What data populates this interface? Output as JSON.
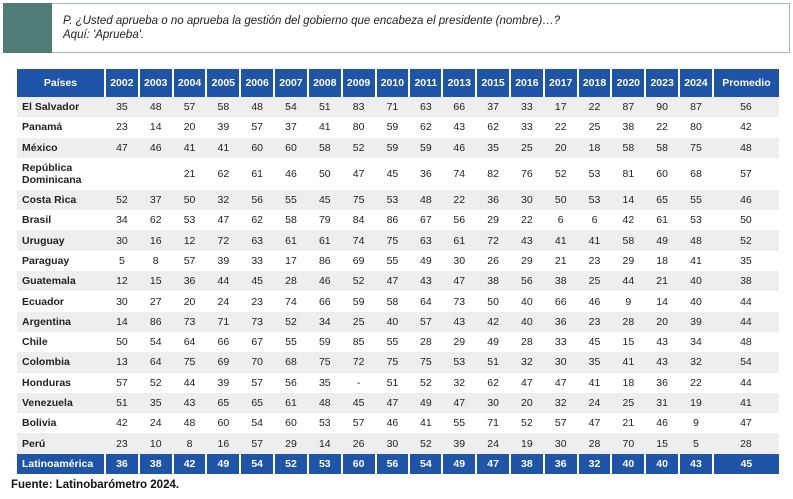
{
  "question": {
    "line1": "P. ¿Usted aprueba o no aprueba la gestión del gobierno que encabeza el presidente (nombre)…?",
    "line2": "Aquí: 'Aprueba'."
  },
  "table": {
    "headers": [
      "Países",
      "2002",
      "2003",
      "2004",
      "2005",
      "2006",
      "2007",
      "2008",
      "2009",
      "2010",
      "2011",
      "2013",
      "2015",
      "2016",
      "2017",
      "2018",
      "2020",
      "2023",
      "2024",
      "Promedio"
    ],
    "rows": [
      {
        "country": "El Salvador",
        "values": [
          "35",
          "48",
          "57",
          "58",
          "48",
          "54",
          "51",
          "83",
          "71",
          "63",
          "66",
          "37",
          "33",
          "17",
          "22",
          "87",
          "90",
          "87",
          "56"
        ]
      },
      {
        "country": "Panamá",
        "values": [
          "23",
          "14",
          "20",
          "39",
          "57",
          "37",
          "41",
          "80",
          "59",
          "62",
          "43",
          "62",
          "33",
          "22",
          "25",
          "38",
          "22",
          "80",
          "42"
        ]
      },
      {
        "country": "México",
        "values": [
          "47",
          "46",
          "41",
          "41",
          "60",
          "60",
          "58",
          "52",
          "59",
          "59",
          "46",
          "35",
          "25",
          "20",
          "18",
          "58",
          "58",
          "75",
          "48"
        ]
      },
      {
        "country": "República Dominicana",
        "values": [
          "",
          "",
          "21",
          "62",
          "61",
          "46",
          "50",
          "47",
          "45",
          "36",
          "74",
          "82",
          "76",
          "52",
          "53",
          "81",
          "60",
          "68",
          "57"
        ]
      },
      {
        "country": "Costa Rica",
        "values": [
          "52",
          "37",
          "50",
          "32",
          "56",
          "55",
          "45",
          "75",
          "53",
          "48",
          "22",
          "36",
          "30",
          "50",
          "53",
          "14",
          "65",
          "55",
          "46"
        ]
      },
      {
        "country": "Brasil",
        "values": [
          "34",
          "62",
          "53",
          "47",
          "62",
          "58",
          "79",
          "84",
          "86",
          "67",
          "56",
          "29",
          "22",
          "6",
          "6",
          "42",
          "61",
          "53",
          "50"
        ]
      },
      {
        "country": "Uruguay",
        "values": [
          "30",
          "16",
          "12",
          "72",
          "63",
          "61",
          "61",
          "74",
          "75",
          "63",
          "61",
          "72",
          "43",
          "41",
          "41",
          "58",
          "49",
          "48",
          "52"
        ]
      },
      {
        "country": "Paraguay",
        "values": [
          "5",
          "8",
          "57",
          "39",
          "33",
          "17",
          "86",
          "69",
          "55",
          "49",
          "30",
          "26",
          "29",
          "21",
          "23",
          "29",
          "18",
          "41",
          "35"
        ]
      },
      {
        "country": "Guatemala",
        "values": [
          "12",
          "15",
          "36",
          "44",
          "45",
          "28",
          "46",
          "52",
          "47",
          "43",
          "47",
          "38",
          "56",
          "38",
          "25",
          "44",
          "21",
          "40",
          "38"
        ]
      },
      {
        "country": "Ecuador",
        "values": [
          "30",
          "27",
          "20",
          "24",
          "23",
          "74",
          "66",
          "59",
          "58",
          "64",
          "73",
          "50",
          "40",
          "66",
          "46",
          "9",
          "14",
          "40",
          "44"
        ]
      },
      {
        "country": "Argentina",
        "values": [
          "14",
          "86",
          "73",
          "71",
          "73",
          "52",
          "34",
          "25",
          "40",
          "57",
          "43",
          "42",
          "40",
          "36",
          "23",
          "28",
          "20",
          "39",
          "44"
        ]
      },
      {
        "country": "Chile",
        "values": [
          "50",
          "54",
          "64",
          "66",
          "67",
          "55",
          "59",
          "85",
          "55",
          "28",
          "29",
          "49",
          "28",
          "33",
          "45",
          "15",
          "43",
          "34",
          "48"
        ]
      },
      {
        "country": "Colombia",
        "values": [
          "13",
          "64",
          "75",
          "69",
          "70",
          "68",
          "75",
          "72",
          "75",
          "75",
          "53",
          "51",
          "32",
          "30",
          "35",
          "41",
          "43",
          "32",
          "54"
        ]
      },
      {
        "country": "Honduras",
        "values": [
          "57",
          "52",
          "44",
          "39",
          "57",
          "56",
          "35",
          "-",
          "51",
          "52",
          "32",
          "62",
          "47",
          "47",
          "41",
          "18",
          "36",
          "22",
          "44"
        ]
      },
      {
        "country": "Venezuela",
        "values": [
          "51",
          "35",
          "43",
          "65",
          "65",
          "61",
          "48",
          "45",
          "47",
          "49",
          "47",
          "30",
          "20",
          "32",
          "24",
          "25",
          "31",
          "19",
          "41"
        ]
      },
      {
        "country": "Bolivia",
        "values": [
          "42",
          "24",
          "48",
          "60",
          "54",
          "60",
          "53",
          "57",
          "46",
          "41",
          "55",
          "71",
          "52",
          "57",
          "47",
          "21",
          "46",
          "9",
          "47"
        ]
      },
      {
        "country": "Perú",
        "values": [
          "23",
          "10",
          "8",
          "16",
          "57",
          "29",
          "14",
          "26",
          "30",
          "52",
          "39",
          "24",
          "19",
          "30",
          "28",
          "70",
          "15",
          "5",
          "28"
        ]
      }
    ],
    "total": {
      "country": "Latinoamérica",
      "values": [
        "36",
        "38",
        "42",
        "49",
        "54",
        "52",
        "53",
        "60",
        "56",
        "54",
        "49",
        "47",
        "38",
        "36",
        "32",
        "40",
        "40",
        "43",
        "45"
      ]
    }
  },
  "source": "Fuente: Latinobarómetro 2024."
}
